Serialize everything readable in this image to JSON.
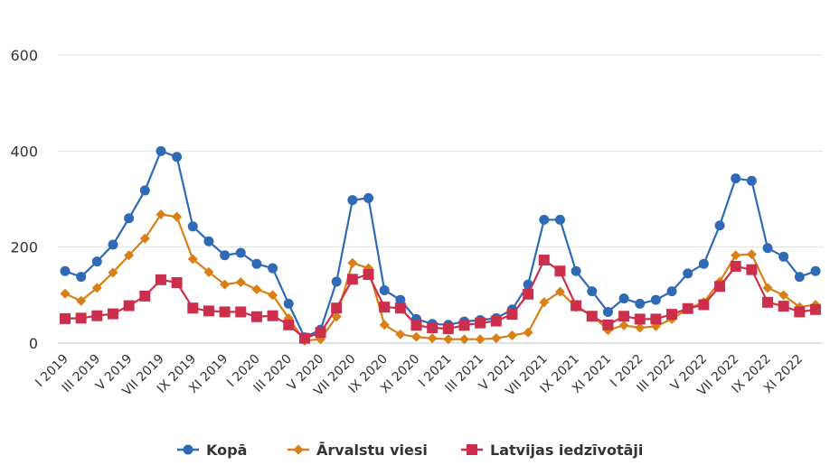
{
  "chart_data": {
    "type": "line",
    "title": "",
    "xlabel": "",
    "ylabel": "",
    "ylim": [
      0,
      600
    ],
    "yticks": [
      0,
      200,
      400,
      600
    ],
    "grid": true,
    "legend_position": "bottom",
    "x": [
      "I 2019",
      "II 2019",
      "III 2019",
      "IV 2019",
      "V 2019",
      "VI 2019",
      "VII 2019",
      "VIII 2019",
      "IX 2019",
      "X 2019",
      "XI 2019",
      "XII 2019",
      "I 2020",
      "II 2020",
      "III 2020",
      "IV 2020",
      "V 2020",
      "VI 2020",
      "VII 2020",
      "VIII 2020",
      "IX 2020",
      "X 2020",
      "XI 2020",
      "XII 2020",
      "I 2021",
      "II 2021",
      "III 2021",
      "IV 2021",
      "V 2021",
      "VI 2021",
      "VII 2021",
      "VIII 2021",
      "IX 2021",
      "X 2021",
      "XI 2021",
      "XII 2021",
      "I 2022",
      "II 2022",
      "III 2022",
      "IV 2022",
      "V 2022",
      "VI 2022",
      "VII 2022",
      "VIII 2022",
      "IX 2022",
      "X 2022",
      "XI 2022",
      "XII 2022"
    ],
    "x_tick_labels": [
      "I 2019",
      "III 2019",
      "V 2019",
      "VII 2019",
      "IX 2019",
      "XI 2019",
      "I 2020",
      "III 2020",
      "V 2020",
      "VII 2020",
      "IX 2020",
      "XI 2020",
      "I 2021",
      "III 2021",
      "V 2021",
      "VII 2021",
      "IX 2021",
      "XI 2021",
      "I 2022",
      "III 2022",
      "V 2022",
      "VII 2022",
      "IX 2022",
      "XI 2022"
    ],
    "series": [
      {
        "name": "Kopā",
        "color": "#2f6ab7",
        "marker": "circle",
        "values": [
          150,
          138,
          170,
          205,
          260,
          318,
          400,
          388,
          243,
          212,
          183,
          188,
          165,
          156,
          82,
          12,
          28,
          128,
          298,
          302,
          110,
          90,
          50,
          40,
          38,
          45,
          48,
          52,
          70,
          122,
          257,
          257,
          150,
          108,
          65,
          93,
          82,
          90,
          108,
          145,
          165,
          245,
          343,
          338,
          198,
          180,
          138,
          150
        ]
      },
      {
        "name": "Ārvalstu viesi",
        "color": "#d97f15",
        "marker": "diamond",
        "values": [
          103,
          88,
          115,
          147,
          183,
          218,
          268,
          263,
          175,
          148,
          122,
          127,
          112,
          100,
          52,
          5,
          8,
          55,
          167,
          156,
          38,
          18,
          13,
          10,
          8,
          8,
          8,
          10,
          16,
          22,
          85,
          107,
          75,
          58,
          27,
          37,
          32,
          35,
          50,
          72,
          85,
          128,
          183,
          185,
          115,
          100,
          75,
          80
        ]
      },
      {
        "name": "Latvijas iedzīvotāji",
        "color": "#cc2f4c",
        "marker": "square",
        "values": [
          51,
          52,
          57,
          61,
          78,
          98,
          132,
          126,
          73,
          67,
          65,
          65,
          55,
          57,
          38,
          10,
          22,
          73,
          133,
          143,
          75,
          73,
          37,
          32,
          30,
          37,
          42,
          46,
          60,
          102,
          173,
          150,
          78,
          56,
          38,
          56,
          50,
          50,
          60,
          72,
          80,
          118,
          160,
          153,
          85,
          77,
          65,
          70
        ]
      }
    ]
  }
}
